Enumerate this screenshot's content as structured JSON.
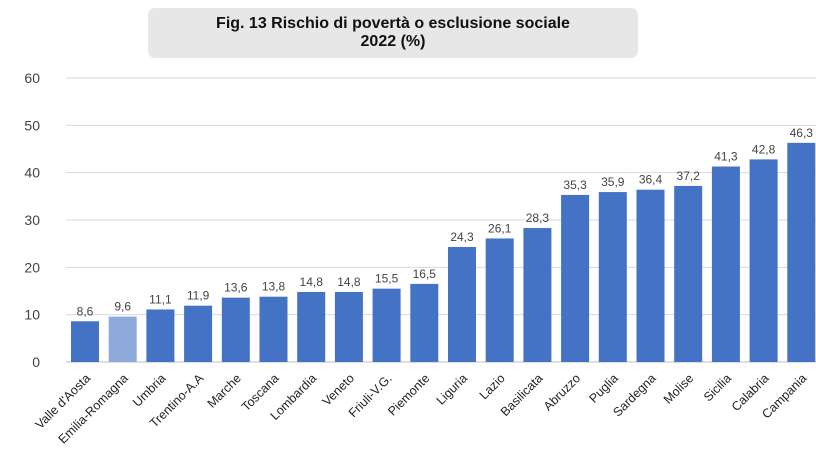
{
  "chart_data": {
    "type": "bar",
    "title": "Fig. 13 Rischio di povertà o esclusione sociale",
    "subtitle": "2022 (%)",
    "xlabel": "",
    "ylabel": "",
    "ylim": [
      0,
      60
    ],
    "yticks": [
      "0",
      "10",
      "20",
      "30",
      "40",
      "50",
      "60"
    ],
    "grid": true,
    "categories": [
      "Valle d'Aosta",
      "Emilia-Romagna",
      "Umbria",
      "Trentino-A.A",
      "Marche",
      "Toscana",
      "Lombardia",
      "Veneto",
      "Friuli-V.G.",
      "Piemonte",
      "Liguria",
      "Lazio",
      "Basilicata",
      "Abruzzo",
      "Puglia",
      "Sardegna",
      "Molise",
      "Sicilia",
      "Calabria",
      "Campania"
    ],
    "values": [
      8.6,
      9.6,
      11.1,
      11.9,
      13.6,
      13.8,
      14.8,
      14.8,
      15.5,
      16.5,
      24.3,
      26.1,
      28.3,
      35.3,
      35.9,
      36.4,
      37.2,
      41.3,
      42.8,
      46.3
    ],
    "value_labels": [
      "8,6",
      "9,6",
      "11,1",
      "11,9",
      "13,6",
      "13,8",
      "14,8",
      "14,8",
      "15,5",
      "16,5",
      "24,3",
      "26,1",
      "28,3",
      "35,3",
      "35,9",
      "36,4",
      "37,2",
      "41,3",
      "42,8",
      "46,3"
    ],
    "colors": {
      "bar": "#4472c4",
      "highlight": "#8eaadb",
      "grid": "#d9d9d9",
      "title_bg": "#e7e7e7"
    },
    "highlight_category": "Emilia-Romagna"
  }
}
